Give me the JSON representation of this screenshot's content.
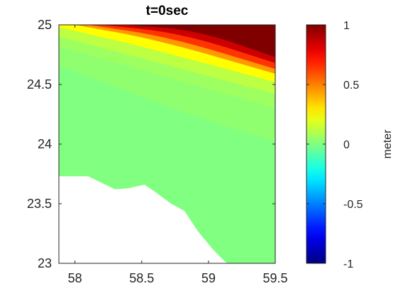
{
  "chart_data": {
    "type": "heatmap",
    "title": "t=0sec",
    "xlim": [
      57.88,
      59.5
    ],
    "ylim": [
      23.0,
      25.0
    ],
    "x_ticks": [
      58,
      58.5,
      59,
      59.5
    ],
    "x_tick_labels": [
      "58",
      "58.5",
      "59",
      "59.5"
    ],
    "y_ticks": [
      23,
      23.5,
      24,
      24.5,
      25
    ],
    "y_tick_labels": [
      "23",
      "23.5",
      "24",
      "24.5",
      "25"
    ],
    "colorbar": {
      "label": "meter",
      "range": [
        -1,
        1
      ],
      "ticks": [
        -1,
        -0.5,
        0,
        0.5,
        1
      ],
      "tick_labels": [
        "-1",
        "-0.5",
        "0",
        "0.5",
        "1"
      ],
      "colormap": "jet"
    },
    "field_contours": [
      {
        "value": 1.0,
        "points": [
          [
            58.35,
            25.0
          ],
          [
            58.9,
            24.96
          ],
          [
            59.5,
            24.73
          ]
        ]
      },
      {
        "value": 0.85,
        "points": [
          [
            58.2,
            25.0
          ],
          [
            58.8,
            24.93
          ],
          [
            59.5,
            24.68
          ]
        ]
      },
      {
        "value": 0.65,
        "points": [
          [
            58.1,
            25.0
          ],
          [
            58.7,
            24.9
          ],
          [
            59.5,
            24.63
          ]
        ]
      },
      {
        "value": 0.45,
        "points": [
          [
            58.0,
            25.0
          ],
          [
            58.6,
            24.88
          ],
          [
            59.5,
            24.59
          ]
        ]
      },
      {
        "value": 0.25,
        "points": [
          [
            57.88,
            24.98
          ],
          [
            58.5,
            24.82
          ],
          [
            59.5,
            24.52
          ]
        ]
      },
      {
        "value": 0.12,
        "points": [
          [
            57.88,
            24.9
          ],
          [
            58.5,
            24.72
          ],
          [
            59.5,
            24.42
          ]
        ]
      },
      {
        "value": 0.06,
        "points": [
          [
            57.88,
            24.82
          ],
          [
            58.5,
            24.62
          ],
          [
            59.5,
            24.3
          ]
        ]
      },
      {
        "value": 0.03,
        "points": [
          [
            57.88,
            24.66
          ],
          [
            58.6,
            24.35
          ],
          [
            59.1,
            24.16
          ],
          [
            59.5,
            24.02
          ]
        ]
      },
      {
        "value": 0.0,
        "points": []
      }
    ],
    "land_mask": [
      [
        57.88,
        23.0
      ],
      [
        57.88,
        23.73
      ],
      [
        58.1,
        23.73
      ],
      [
        58.3,
        23.62
      ],
      [
        58.4,
        23.63
      ],
      [
        58.52,
        23.66
      ],
      [
        58.6,
        23.6
      ],
      [
        58.72,
        23.5
      ],
      [
        58.82,
        23.44
      ],
      [
        58.92,
        23.27
      ],
      [
        59.03,
        23.12
      ],
      [
        59.1,
        23.04
      ],
      [
        59.14,
        23.0
      ]
    ]
  }
}
